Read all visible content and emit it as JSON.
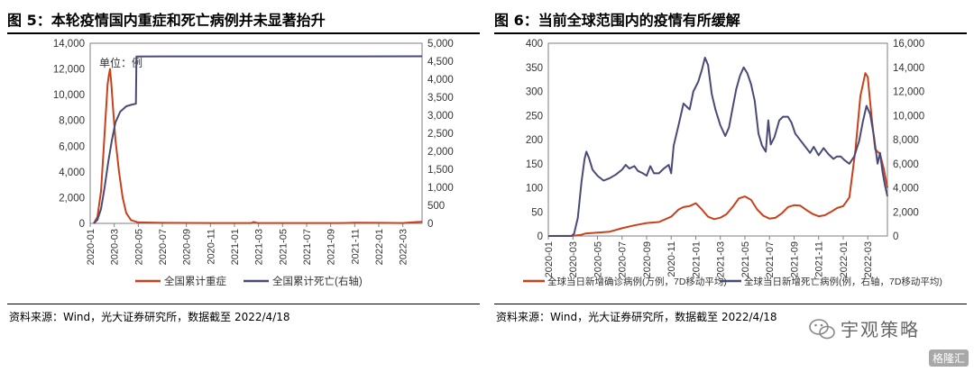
{
  "left": {
    "title": "图 5：本轮疫情国内重症和死亡病例并未显著抬升",
    "source": "资料来源：Wind，光大证券研究所，数据截至 2022/4/18",
    "unit_label": "单位：例"
  },
  "right": {
    "title": "图 6：当前全球范围内的疫情有所缓解",
    "source": "资料来源：Wind，光大证券研究所，数据截至 2022/4/18"
  },
  "watermark": {
    "main": "宇观策略",
    "sub": "格隆汇"
  },
  "colors": {
    "red": "#C8401C",
    "blue": "#4A4A78",
    "axis": "#7F7F7F"
  },
  "chart_data": [
    {
      "type": "line",
      "title": "图 5：本轮疫情国内重症和死亡病例并未显著抬升",
      "annotation": "单位：例",
      "x_ticks": [
        "2020-01",
        "2020-03",
        "2020-05",
        "2020-07",
        "2020-09",
        "2020-11",
        "2021-01",
        "2021-03",
        "2021-05",
        "2021-07",
        "2021-09",
        "2021-11",
        "2022-01",
        "2022-03"
      ],
      "xlim": [
        0,
        27.6
      ],
      "ylim_left": [
        0,
        14000
      ],
      "ylim_right": [
        0,
        5000
      ],
      "y_ticks_left": [
        "0",
        "2,000",
        "4,000",
        "6,000",
        "8,000",
        "10,000",
        "12,000",
        "14,000"
      ],
      "y_ticks_right": [
        "0",
        "500",
        "1,000",
        "1,500",
        "2,000",
        "2,500",
        "3,000",
        "3,500",
        "4,000",
        "4,500",
        "5,000"
      ],
      "legend_position": "bottom",
      "series": [
        {
          "name": "全国累计重症",
          "axis": "left",
          "color": "#C8401C",
          "points": [
            [
              0.3,
              0
            ],
            [
              0.6,
              500
            ],
            [
              0.9,
              2500
            ],
            [
              1.1,
              5500
            ],
            [
              1.3,
              8500
            ],
            [
              1.45,
              10800
            ],
            [
              1.55,
              11500
            ],
            [
              1.65,
              12000
            ],
            [
              1.75,
              11000
            ],
            [
              1.9,
              9000
            ],
            [
              2.1,
              6500
            ],
            [
              2.4,
              4000
            ],
            [
              2.7,
              2000
            ],
            [
              3.0,
              800
            ],
            [
              3.4,
              250
            ],
            [
              4,
              80
            ],
            [
              6,
              40
            ],
            [
              10,
              30
            ],
            [
              13.4,
              30
            ],
            [
              13.6,
              110
            ],
            [
              13.9,
              30
            ],
            [
              18,
              30
            ],
            [
              21,
              30
            ],
            [
              22,
              55
            ],
            [
              24,
              40
            ],
            [
              26,
              30
            ],
            [
              27,
              100
            ],
            [
              27.6,
              120
            ]
          ]
        },
        {
          "name": "全国累计死亡(右轴)",
          "axis": "right",
          "color": "#4A4A78",
          "points": [
            [
              0.3,
              0
            ],
            [
              0.6,
              100
            ],
            [
              0.9,
              400
            ],
            [
              1.2,
              1000
            ],
            [
              1.5,
              1700
            ],
            [
              1.8,
              2300
            ],
            [
              2.1,
              2800
            ],
            [
              2.5,
              3100
            ],
            [
              3.0,
              3250
            ],
            [
              3.5,
              3300
            ],
            [
              3.8,
              3320
            ],
            [
              3.85,
              4630
            ],
            [
              6,
              4634
            ],
            [
              10,
              4634
            ],
            [
              14,
              4636
            ],
            [
              18,
              4636
            ],
            [
              22,
              4636
            ],
            [
              27.6,
              4638
            ]
          ]
        }
      ]
    },
    {
      "type": "line",
      "title": "图 6：当前全球范围内的疫情有所缓解",
      "x_ticks": [
        "2020-01",
        "2020-03",
        "2020-05",
        "2020-07",
        "2020-09",
        "2020-11",
        "2021-01",
        "2021-03",
        "2021-05",
        "2021-07",
        "2021-09",
        "2021-11",
        "2022-01",
        "2022-03"
      ],
      "xlim": [
        0,
        27.6
      ],
      "ylim_left": [
        0,
        400
      ],
      "ylim_right": [
        0,
        16000
      ],
      "y_ticks_left": [
        "0",
        "50",
        "100",
        "150",
        "200",
        "250",
        "300",
        "350",
        "400"
      ],
      "y_ticks_right": [
        "0",
        "2,000",
        "4,000",
        "6,000",
        "8,000",
        "10,000",
        "12,000",
        "14,000",
        "16,000"
      ],
      "legend_position": "bottom",
      "series": [
        {
          "name": "全球当日新增确诊病例(万例，7D移动平均)",
          "axis": "left",
          "color": "#C8401C",
          "points": [
            [
              0,
              0
            ],
            [
              2,
              0.5
            ],
            [
              2.6,
              2
            ],
            [
              3,
              5
            ],
            [
              4,
              7
            ],
            [
              5,
              9
            ],
            [
              6,
              16
            ],
            [
              7,
              22
            ],
            [
              8,
              27
            ],
            [
              9,
              29
            ],
            [
              10,
              40
            ],
            [
              10.6,
              55
            ],
            [
              11,
              60
            ],
            [
              11.5,
              62
            ],
            [
              12,
              68
            ],
            [
              12.5,
              55
            ],
            [
              13,
              40
            ],
            [
              13.5,
              35
            ],
            [
              14,
              38
            ],
            [
              14.5,
              45
            ],
            [
              15,
              60
            ],
            [
              15.5,
              78
            ],
            [
              16,
              82
            ],
            [
              16.5,
              75
            ],
            [
              17,
              55
            ],
            [
              17.5,
              42
            ],
            [
              18,
              36
            ],
            [
              18.5,
              38
            ],
            [
              19,
              47
            ],
            [
              19.5,
              60
            ],
            [
              20,
              64
            ],
            [
              20.5,
              63
            ],
            [
              21,
              54
            ],
            [
              21.5,
              46
            ],
            [
              22,
              41
            ],
            [
              22.5,
              43
            ],
            [
              23,
              50
            ],
            [
              23.5,
              58
            ],
            [
              24,
              62
            ],
            [
              24.5,
              80
            ],
            [
              25,
              180
            ],
            [
              25.4,
              290
            ],
            [
              25.8,
              338
            ],
            [
              26,
              330
            ],
            [
              26.3,
              250
            ],
            [
              26.6,
              180
            ],
            [
              27,
              170
            ],
            [
              27.3,
              140
            ],
            [
              27.6,
              100
            ]
          ]
        },
        {
          "name": "全球当日新增死亡病例(例，右轴，7D移动平均)",
          "axis": "right",
          "color": "#4A4A78",
          "points": [
            [
              0,
              0
            ],
            [
              1.9,
              0
            ],
            [
              2.1,
              200
            ],
            [
              2.4,
              1500
            ],
            [
              2.7,
              4500
            ],
            [
              2.95,
              6400
            ],
            [
              3.1,
              7000
            ],
            [
              3.3,
              6500
            ],
            [
              3.6,
              5500
            ],
            [
              4,
              5000
            ],
            [
              4.5,
              4600
            ],
            [
              5,
              4800
            ],
            [
              5.5,
              5100
            ],
            [
              6,
              5500
            ],
            [
              6.3,
              5900
            ],
            [
              6.6,
              5600
            ],
            [
              7,
              5800
            ],
            [
              7.3,
              5400
            ],
            [
              7.7,
              5200
            ],
            [
              8,
              5000
            ],
            [
              8.3,
              5800
            ],
            [
              8.6,
              5200
            ],
            [
              9,
              5200
            ],
            [
              9.4,
              5600
            ],
            [
              9.8,
              5900
            ],
            [
              10,
              5200
            ],
            [
              10.2,
              7500
            ],
            [
              10.6,
              9200
            ],
            [
              11,
              11000
            ],
            [
              11.5,
              10500
            ],
            [
              11.8,
              12000
            ],
            [
              12.2,
              12800
            ],
            [
              12.5,
              13800
            ],
            [
              12.75,
              14800
            ],
            [
              13,
              14200
            ],
            [
              13.3,
              11800
            ],
            [
              13.6,
              10500
            ],
            [
              14,
              9200
            ],
            [
              14.4,
              8300
            ],
            [
              14.7,
              9000
            ],
            [
              15,
              10600
            ],
            [
              15.3,
              12200
            ],
            [
              15.6,
              13300
            ],
            [
              15.9,
              14000
            ],
            [
              16.2,
              13500
            ],
            [
              16.5,
              12600
            ],
            [
              16.8,
              11200
            ],
            [
              17.1,
              8500
            ],
            [
              17.4,
              7500
            ],
            [
              17.7,
              7000
            ],
            [
              17.9,
              9600
            ],
            [
              18.1,
              7600
            ],
            [
              18.4,
              8200
            ],
            [
              18.8,
              9600
            ],
            [
              19.1,
              9900
            ],
            [
              19.5,
              9900
            ],
            [
              19.8,
              9400
            ],
            [
              20.1,
              8500
            ],
            [
              20.4,
              8100
            ],
            [
              20.7,
              7700
            ],
            [
              21,
              7300
            ],
            [
              21.3,
              6900
            ],
            [
              21.6,
              7400
            ],
            [
              22,
              6700
            ],
            [
              22.4,
              7300
            ],
            [
              22.8,
              6800
            ],
            [
              23.2,
              6400
            ],
            [
              23.5,
              6600
            ],
            [
              23.8,
              6600
            ],
            [
              24.1,
              6300
            ],
            [
              24.5,
              6000
            ],
            [
              24.9,
              6600
            ],
            [
              25.3,
              7900
            ],
            [
              25.6,
              9500
            ],
            [
              25.9,
              10800
            ],
            [
              26.2,
              10100
            ],
            [
              26.5,
              8300
            ],
            [
              26.8,
              6000
            ],
            [
              27,
              6900
            ],
            [
              27.2,
              5300
            ],
            [
              27.4,
              4200
            ],
            [
              27.6,
              3300
            ]
          ]
        }
      ]
    }
  ]
}
